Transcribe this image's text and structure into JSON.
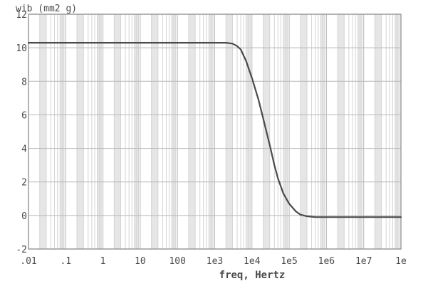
{
  "chart_data": {
    "type": "line",
    "title": "",
    "ylabel": "wib (mm2 g)",
    "xlabel": "freq, Hertz",
    "x_scale": "log",
    "xlim": [
      0.01,
      100000000
    ],
    "ylim": [
      -2,
      12
    ],
    "grid": true,
    "x_ticks": [
      {
        "value": 0.01,
        "label": ".01"
      },
      {
        "value": 0.1,
        "label": ".1"
      },
      {
        "value": 1,
        "label": "1"
      },
      {
        "value": 10,
        "label": "10"
      },
      {
        "value": 100,
        "label": "100"
      },
      {
        "value": 1000,
        "label": "1e3"
      },
      {
        "value": 10000,
        "label": "1e4"
      },
      {
        "value": 100000,
        "label": "1e5"
      },
      {
        "value": 1000000,
        "label": "1e6"
      },
      {
        "value": 10000000,
        "label": "1e7"
      },
      {
        "value": 100000000,
        "label": "1e"
      }
    ],
    "y_ticks": [
      {
        "value": 12,
        "label": "12"
      },
      {
        "value": 10,
        "label": "10"
      },
      {
        "value": 8,
        "label": "8"
      },
      {
        "value": 6,
        "label": "6"
      },
      {
        "value": 4,
        "label": "4"
      },
      {
        "value": 2,
        "label": "2"
      },
      {
        "value": 0,
        "label": "0"
      },
      {
        "value": -2,
        "label": "-2"
      }
    ],
    "colors": {
      "line": "#4a4a4a",
      "major_grid": "#b8b8b8",
      "minor_grid": "#d4d4d4",
      "band": "#e6e6e6",
      "frame": "#9a9a9a",
      "text": "#4a4a4a"
    },
    "series": [
      {
        "x": [
          0.01,
          1,
          100,
          1000,
          2000,
          3000,
          4000,
          5000,
          7000,
          10000,
          15000,
          20000,
          30000,
          40000,
          50000,
          70000,
          100000,
          150000,
          200000,
          300000,
          500000,
          1000000,
          10000000,
          100000000
        ],
        "values": [
          10.3,
          10.3,
          10.3,
          10.3,
          10.3,
          10.25,
          10.1,
          9.9,
          9.2,
          8.2,
          6.9,
          5.8,
          4.2,
          3.0,
          2.2,
          1.3,
          0.7,
          0.25,
          0.05,
          -0.05,
          -0.1,
          -0.1,
          -0.1,
          -0.1
        ]
      }
    ]
  }
}
